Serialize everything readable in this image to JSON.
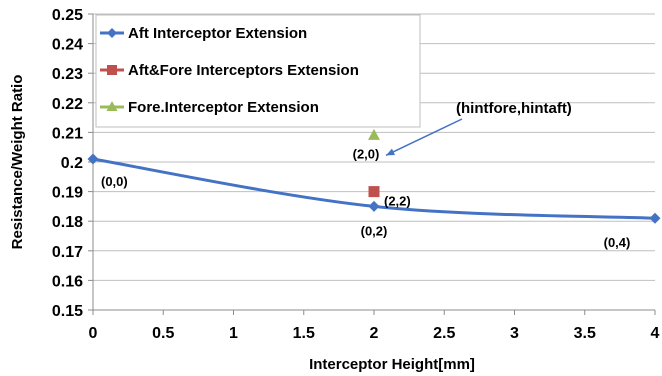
{
  "chart_data": {
    "type": "line",
    "xlabel": "Interceptor Height[mm]",
    "ylabel": "Resistance/Weight Ratio",
    "xlim": [
      0,
      4
    ],
    "ylim": [
      0.15,
      0.25
    ],
    "x_ticks": [
      "0",
      "0.5",
      "1",
      "1.5",
      "2",
      "2.5",
      "3",
      "3.5",
      "4"
    ],
    "y_ticks": [
      "0.15",
      "0.16",
      "0.17",
      "0.18",
      "0.19",
      "0.2",
      "0.21",
      "0.22",
      "0.23",
      "0.24",
      "0.25"
    ],
    "grid": "horizontal",
    "legend_position": "top-left",
    "series": [
      {
        "name": "Aft Interceptor Extension",
        "color": "#4472c4",
        "marker": "diamond",
        "x": [
          0,
          2,
          4
        ],
        "y": [
          0.201,
          0.185,
          0.181
        ]
      },
      {
        "name": "Aft&Fore Interceptors Extension",
        "color": "#c0504d",
        "marker": "square",
        "x": [
          2
        ],
        "y": [
          0.19
        ]
      },
      {
        "name": "Fore.Interceptor Extension",
        "color": "#9bbb59",
        "marker": "triangle",
        "x": [
          2
        ],
        "y": [
          0.209
        ]
      }
    ],
    "annotations": [
      {
        "text": "(0,0)",
        "x": 0,
        "y": 0.201
      },
      {
        "text": "(0,2)",
        "x": 2,
        "y": 0.185
      },
      {
        "text": "(2,2)",
        "x": 2,
        "y": 0.19
      },
      {
        "text": "(2,0)",
        "x": 2,
        "y": 0.209
      },
      {
        "text": "(0,4)",
        "x": 4,
        "y": 0.181
      },
      {
        "text": "(hintfore,hintaft)",
        "x": 2,
        "y": 0.209
      }
    ]
  }
}
